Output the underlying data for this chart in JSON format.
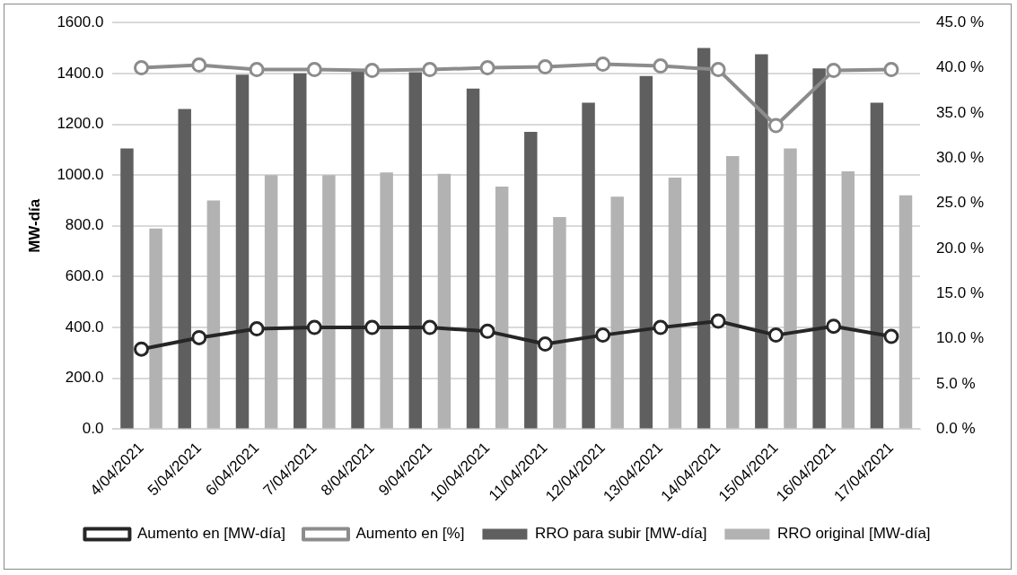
{
  "chart_data": {
    "type": "bar",
    "ylabel": "MW-día",
    "categories": [
      "4/04/2021",
      "5/04/2021",
      "6/04/2021",
      "7/04/2021",
      "8/04/2021",
      "9/04/2021",
      "10/04/2021",
      "11/04/2021",
      "12/04/2021",
      "13/04/2021",
      "14/04/2021",
      "15/04/2021",
      "16/04/2021",
      "17/04/2021"
    ],
    "series": [
      {
        "name": "RRO para subir [MW-día]",
        "color": "#5f5f5f",
        "values": [
          1105,
          1260,
          1395,
          1400,
          1410,
          1405,
          1340,
          1170,
          1285,
          1390,
          1500,
          1475,
          1420,
          1285
        ]
      },
      {
        "name": "RRO original [MW-día]",
        "color": "#b2b2b2",
        "values": [
          790,
          900,
          1000,
          1000,
          1010,
          1005,
          955,
          835,
          915,
          990,
          1075,
          1105,
          1015,
          920
        ]
      },
      {
        "name": "Aumento en [MW-día]",
        "type": "line",
        "color": "#262626",
        "values": [
          315,
          360,
          395,
          400,
          400,
          400,
          385,
          335,
          370,
          400,
          425,
          370,
          405,
          365
        ]
      },
      {
        "name": "Aumento en [%]",
        "type": "line",
        "axis": "y2",
        "color": "#8c8c8c",
        "values": [
          40.0,
          40.3,
          39.8,
          39.8,
          39.7,
          39.8,
          40.0,
          40.1,
          40.4,
          40.2,
          39.8,
          33.6,
          39.7,
          39.8
        ]
      }
    ],
    "ylim": [
      0,
      1600
    ],
    "yticks": [
      {
        "value": 0,
        "label": "0.0"
      },
      {
        "value": 200,
        "label": "200.0"
      },
      {
        "value": 400,
        "label": "400.0"
      },
      {
        "value": 600,
        "label": "600.0"
      },
      {
        "value": 800,
        "label": "800.0"
      },
      {
        "value": 1000,
        "label": "1000.0"
      },
      {
        "value": 1200,
        "label": "1200.0"
      },
      {
        "value": 1400,
        "label": "1400.0"
      },
      {
        "value": 1600,
        "label": "1600.0"
      }
    ],
    "y2lim": [
      0,
      45
    ],
    "y2ticks": [
      {
        "value": 0,
        "label": "0.0 %"
      },
      {
        "value": 5,
        "label": "5.0 %"
      },
      {
        "value": 10,
        "label": "10.0 %"
      },
      {
        "value": 15,
        "label": "15.0 %"
      },
      {
        "value": 20,
        "label": "20.0 %"
      },
      {
        "value": 25,
        "label": "25.0 %"
      },
      {
        "value": 30,
        "label": "30.0 %"
      },
      {
        "value": 35,
        "label": "35.0 %"
      },
      {
        "value": 40,
        "label": "40.0 %"
      },
      {
        "value": 45,
        "label": "45.0 %"
      }
    ],
    "grid": "y",
    "legend": "bottom",
    "marker": "circle",
    "line_style": "solid"
  }
}
